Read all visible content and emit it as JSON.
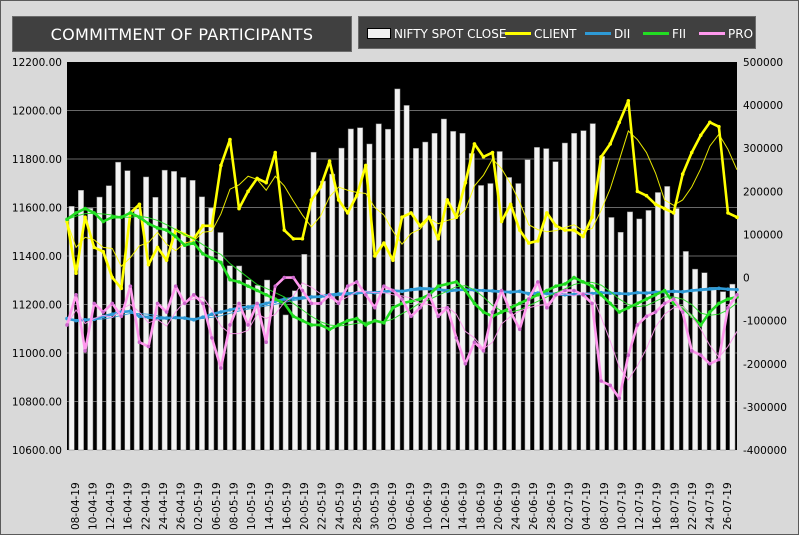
{
  "header": {
    "title": "COMMITMENT  OF PARTICIPANTS"
  },
  "chart_data": {
    "type": "bar",
    "title": "COMMITMENT  OF PARTICIPANTS",
    "legend_position": "top",
    "grid": true,
    "colors": {
      "NIFTY SPOT CLOSE": "#f2f2f2",
      "CLIENT": "#ffff00",
      "DII": "#2e9ad6",
      "FII": "#22dd22",
      "PRO": "#ff99ee"
    },
    "x_tick_labels": [
      "08-04-19",
      "10-04-19",
      "12-04-19",
      "16-04-19",
      "22-04-19",
      "24-04-19",
      "26-04-19",
      "02-05-19",
      "06-05-19",
      "08-05-19",
      "10-05-19",
      "14-05-19",
      "16-05-19",
      "20-05-19",
      "22-05-19",
      "24-05-19",
      "28-05-19",
      "30-05-19",
      "03-06-19",
      "06-06-19",
      "10-06-19",
      "12-06-19",
      "14-06-19",
      "18-06-19",
      "20-06-19",
      "24-06-19",
      "26-06-19",
      "28-06-19",
      "02-07-19",
      "04-07-19",
      "08-07-19",
      "10-07-19",
      "12-07-19",
      "16-07-19",
      "18-07-19",
      "22-07-19",
      "24-07-19",
      "26-07-19"
    ],
    "y_left": {
      "min": 10600,
      "max": 12200,
      "step": 200,
      "tick_labels": [
        "10600.00",
        "10800.00",
        "11000.00",
        "11200.00",
        "11400.00",
        "11600.00",
        "11800.00",
        "12000.00",
        "12200.00"
      ]
    },
    "y_right": {
      "min": -400000,
      "max": 500000,
      "step": 100000,
      "tick_labels": [
        "-400000",
        "-300000",
        "-200000",
        "-100000",
        "0",
        "100000",
        "200000",
        "300000",
        "400000",
        "500000"
      ]
    },
    "series": [
      {
        "name": "NIFTY SPOT CLOSE",
        "axis": "left",
        "type": "bar",
        "values": [
          11605,
          11671,
          11597,
          11643,
          11690,
          11787,
          11752,
          11594,
          11726,
          11642,
          11754,
          11749,
          11724,
          11712,
          11644,
          11598,
          11497,
          11360,
          11359,
          11302,
          11279,
          11301,
          11222,
          11157,
          11257,
          11407,
          11828,
          11709,
          11738,
          11845,
          11924,
          11929,
          11862,
          11945,
          11923,
          12089,
          12021,
          11844,
          11870,
          11906,
          11965,
          11914,
          11906,
          11823,
          11691,
          11699,
          11831,
          11724,
          11699,
          11797,
          11848,
          11843,
          11789,
          11866,
          11906,
          11917,
          11946,
          11811,
          11559,
          11498,
          11582,
          11553,
          11588,
          11662,
          11687,
          11596,
          11419,
          11346,
          11331,
          11271,
          11253,
          11284
        ]
      },
      {
        "name": "CLIENT",
        "axis": "right",
        "type": "line",
        "values": [
          130000,
          10000,
          140000,
          70000,
          60000,
          0,
          -25000,
          150000,
          170000,
          30000,
          70000,
          40000,
          110000,
          100000,
          90000,
          120000,
          120000,
          260000,
          320000,
          160000,
          200000,
          230000,
          220000,
          290000,
          110000,
          90000,
          90000,
          180000,
          210000,
          270000,
          180000,
          150000,
          190000,
          260000,
          50000,
          80000,
          40000,
          140000,
          150000,
          120000,
          140000,
          90000,
          180000,
          140000,
          220000,
          310000,
          280000,
          290000,
          130000,
          170000,
          110000,
          80000,
          85000,
          150000,
          120000,
          110000,
          110000,
          95000,
          140000,
          280000,
          310000,
          360000,
          410000,
          200000,
          190000,
          170000,
          160000,
          150000,
          240000,
          290000,
          330000,
          360000,
          350000,
          150000,
          140000
        ]
      },
      {
        "name": "DII",
        "axis": "right",
        "type": "line",
        "values": [
          -95000,
          -100000,
          -98000,
          -97000,
          -90000,
          -85000,
          -80000,
          -78000,
          -90000,
          -92000,
          -95000,
          -94000,
          -93000,
          -94000,
          -98000,
          -92000,
          -85000,
          -80000,
          -75000,
          -70000,
          -68000,
          -65000,
          -60000,
          -55000,
          -50000,
          -48000,
          -47000,
          -45000,
          -44000,
          -40000,
          -38000,
          -37000,
          -36000,
          -34000,
          -35000,
          -33000,
          -30000,
          -32000,
          -28000,
          -25000,
          -26000,
          -27000,
          -32000,
          -29000,
          -28000,
          -29000,
          -30000,
          -31000,
          -33000,
          -34000,
          -32000,
          -38000,
          -36000,
          -37000,
          -38000,
          -40000,
          -39000,
          -38000,
          -37000,
          -35000,
          -36000,
          -37000,
          -38000,
          -35000,
          -36000,
          -34000,
          -33000,
          -32000,
          -33000,
          -30000,
          -28000,
          -26000,
          -25000,
          -27000,
          -28000
        ]
      },
      {
        "name": "FII",
        "axis": "right",
        "type": "line",
        "values": [
          135000,
          150000,
          160000,
          150000,
          130000,
          140000,
          140000,
          150000,
          140000,
          125000,
          115000,
          110000,
          95000,
          75000,
          80000,
          55000,
          45000,
          35000,
          -5000,
          -10000,
          -20000,
          -30000,
          -40000,
          -50000,
          -60000,
          -90000,
          -100000,
          -110000,
          -110000,
          -120000,
          -110000,
          -100000,
          -95000,
          -110000,
          -100000,
          -105000,
          -70000,
          -60000,
          -55000,
          -50000,
          -40000,
          -20000,
          -15000,
          -10000,
          -30000,
          -60000,
          -80000,
          -90000,
          -80000,
          -70000,
          -60000,
          -50000,
          -40000,
          -30000,
          -20000,
          -15000,
          0,
          -10000,
          -20000,
          -40000,
          -60000,
          -80000,
          -70000,
          -60000,
          -50000,
          -40000,
          -30000,
          -60000,
          -70000,
          -90000,
          -110000,
          -80000,
          -60000,
          -50000,
          -45000
        ]
      },
      {
        "name": "PRO",
        "axis": "right",
        "type": "line",
        "values": [
          -110000,
          -40000,
          -170000,
          -60000,
          -80000,
          -60000,
          -90000,
          -20000,
          -150000,
          -160000,
          -60000,
          -80000,
          -20000,
          -60000,
          -40000,
          -60000,
          -140000,
          -210000,
          -110000,
          -60000,
          -110000,
          -60000,
          -150000,
          -20000,
          0,
          0,
          -30000,
          -60000,
          -60000,
          -40000,
          -60000,
          -20000,
          -10000,
          -40000,
          -70000,
          -20000,
          -30000,
          -50000,
          -90000,
          -70000,
          -40000,
          -90000,
          -70000,
          -140000,
          -200000,
          -150000,
          -170000,
          -80000,
          -30000,
          -80000,
          -120000,
          -50000,
          -10000,
          -70000,
          -40000,
          -30000,
          -30000,
          -40000,
          -60000,
          -240000,
          -250000,
          -280000,
          -180000,
          -110000,
          -90000,
          -80000,
          -60000,
          -50000,
          -80000,
          -170000,
          -180000,
          -200000,
          -190000,
          -70000,
          -40000
        ]
      }
    ]
  }
}
